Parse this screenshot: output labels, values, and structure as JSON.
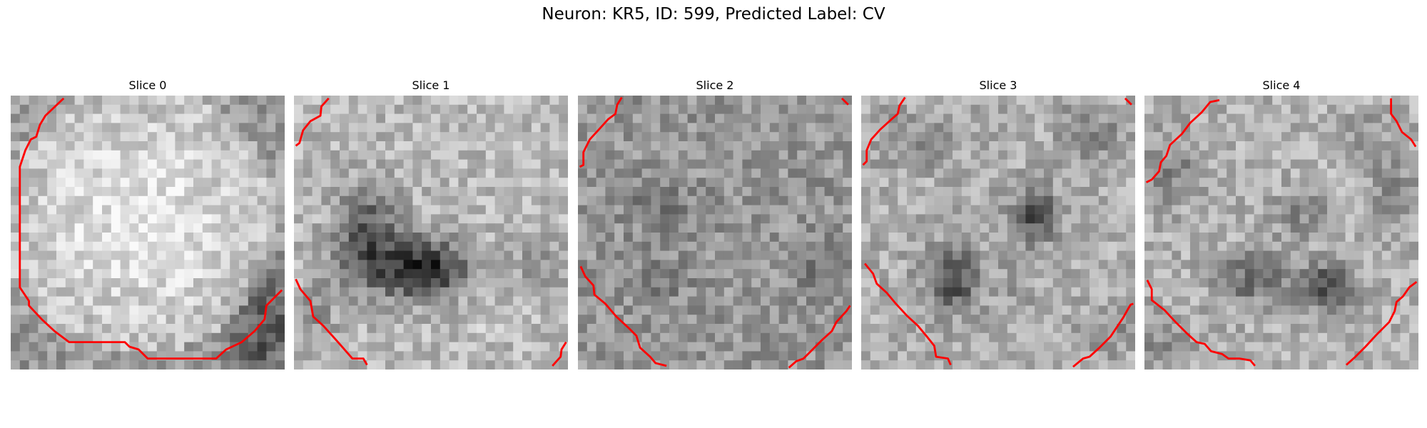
{
  "figure": {
    "title": "Neuron: KR5, ID: 599, Predicted Label: CV"
  },
  "panels": [
    {
      "title": "Slice 0"
    },
    {
      "title": "Slice 1"
    },
    {
      "title": "Slice 2"
    },
    {
      "title": "Slice 3"
    },
    {
      "title": "Slice 4"
    }
  ],
  "style": {
    "contour_color": "#ff0000",
    "colormap": "grayscale"
  }
}
